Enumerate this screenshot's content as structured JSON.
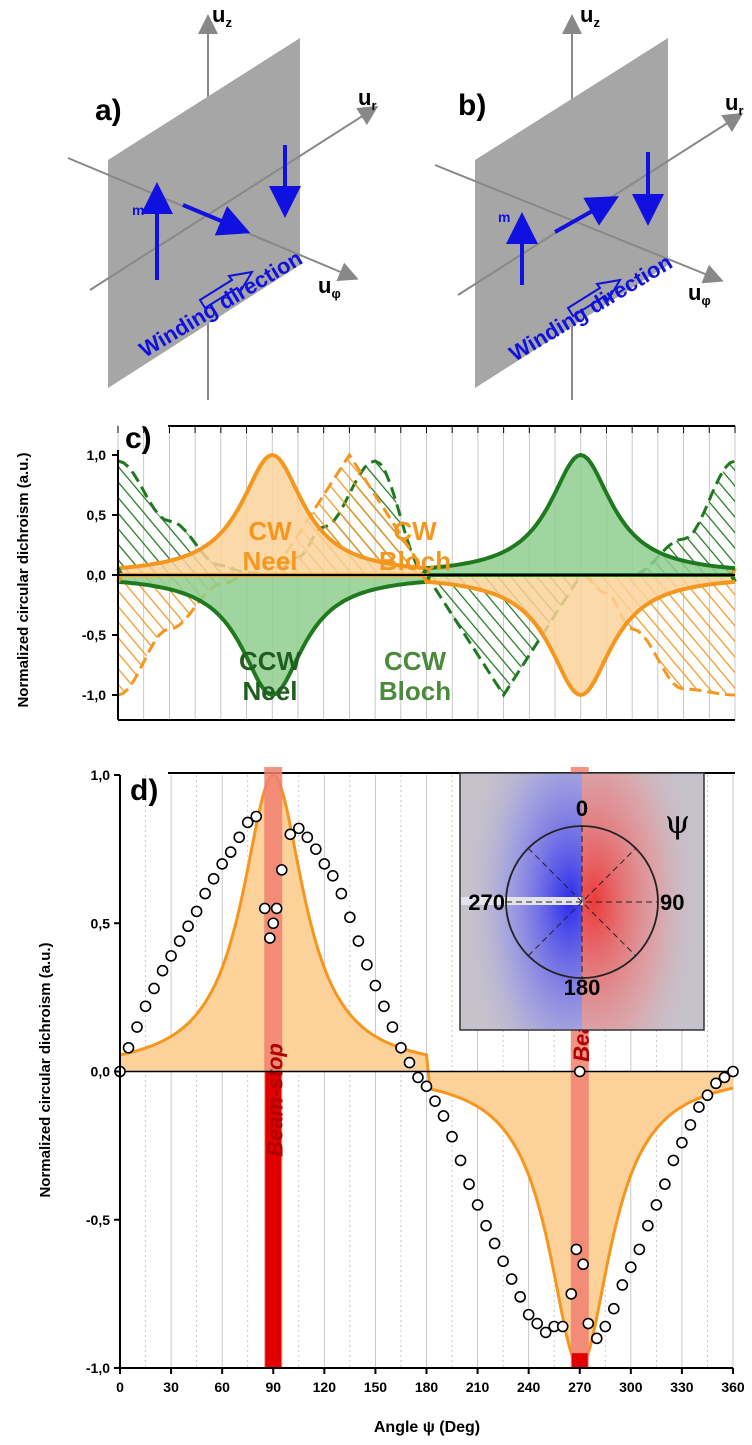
{
  "diagrams": {
    "a": {
      "label": "a)",
      "axes": {
        "z": "u",
        "z_sub": "z",
        "r": "u",
        "r_sub": "r",
        "phi": "u",
        "phi_sub": "φ"
      },
      "moment_label": "m",
      "winding_label": "Winding direction"
    },
    "b": {
      "label": "b)",
      "axes": {
        "z": "u",
        "z_sub": "z",
        "r": "u",
        "r_sub": "r",
        "phi": "u",
        "phi_sub": "φ"
      },
      "moment_label": "m",
      "winding_label": "Winding direction"
    }
  },
  "colors": {
    "orange": "#f5961e",
    "orange_fill": "#fcd29a",
    "green": "#1f7a1f",
    "green_fill": "#8fce8f",
    "plane": "#a6a6a6",
    "arrow": "#1010e0",
    "beam_stop": "#e00000",
    "beam_stop_light": "#f08070"
  },
  "chart_data": [
    {
      "panel": "c)",
      "type": "area",
      "ylabel": "Normalized circular dichroism (a.u.)",
      "xlim": [
        0,
        360
      ],
      "ylim": [
        -1.0,
        1.0
      ],
      "yticks": [
        "1,0",
        "0,5",
        "0,0",
        "-0,5",
        "-1,0"
      ],
      "x": [
        0,
        30,
        60,
        75,
        90,
        105,
        120,
        150,
        180,
        210,
        240,
        255,
        270,
        285,
        300,
        330,
        360
      ],
      "series": [
        {
          "values": [
            0,
            0.08,
            0.35,
            0.7,
            1.0,
            0.7,
            0.35,
            0.08,
            0,
            0,
            0,
            0,
            0,
            0,
            0,
            0,
            0
          ]
        },
        {
          "values": [
            0,
            0,
            0,
            0,
            0,
            0,
            0,
            0,
            0,
            0.08,
            0.35,
            0.7,
            1.0,
            0.7,
            0.35,
            0.08,
            0
          ]
        },
        {
          "values": [
            0,
            -0.08,
            -0.35,
            -0.7,
            -1.0,
            -0.7,
            -0.35,
            -0.08,
            0,
            0,
            0,
            0,
            0,
            0,
            0,
            0,
            0
          ]
        },
        {
          "values": [
            0,
            0,
            0,
            0,
            0,
            0,
            0,
            0,
            0,
            -0.08,
            -0.35,
            -0.7,
            -1.0,
            -0.7,
            -0.35,
            -0.08,
            0
          ]
        },
        {
          "values": [
            0.95,
            0.45,
            0.08,
            0.02,
            0,
            0.15,
            0.4,
            0.95,
            0,
            0,
            0,
            0,
            0,
            0,
            0,
            0.3,
            0.95
          ]
        },
        {
          "values": [
            -1.0,
            -0.45,
            -0.08,
            0,
            0,
            0,
            0,
            0,
            0,
            0,
            0,
            0,
            0,
            -0.15,
            -0.45,
            -0.95,
            -1.0
          ]
        }
      ],
      "annotations": [
        {
          "text": "CW",
          "line2": "Neel",
          "color": "#f5961e"
        },
        {
          "text": "CW",
          "line2": "Bloch",
          "color": "#f5961e"
        },
        {
          "text": "CCW",
          "line2": "Neel",
          "color": "#1f5e1f"
        },
        {
          "text": "CCW",
          "line2": "Bloch",
          "color": "#4a8a3a"
        }
      ]
    },
    {
      "panel": "d)",
      "type": "scatter",
      "xlabel": "Angle ψ (Deg)",
      "ylabel": "Normalized circular dichroism (a.u.)",
      "xlim": [
        0,
        360
      ],
      "ylim": [
        -1.0,
        1.0
      ],
      "xticks": [
        0,
        30,
        60,
        90,
        120,
        150,
        180,
        210,
        240,
        270,
        300,
        330,
        360
      ],
      "yticks": [
        "1,0",
        "0,5",
        "0,0",
        "-0,5",
        "-1,0"
      ],
      "model_curve": {
        "x": [
          0,
          30,
          60,
          75,
          90,
          105,
          120,
          150,
          180,
          210,
          240,
          255,
          270,
          285,
          300,
          330,
          360
        ],
        "y": [
          0,
          0.08,
          0.35,
          0.7,
          1.0,
          0.7,
          0.35,
          0.08,
          0,
          -0.08,
          -0.35,
          -0.7,
          -1.0,
          -0.7,
          -0.35,
          -0.08,
          0
        ]
      },
      "data_points": {
        "x": [
          0,
          5,
          10,
          15,
          20,
          25,
          30,
          35,
          40,
          45,
          50,
          55,
          60,
          65,
          70,
          75,
          80,
          85,
          88,
          90,
          92,
          95,
          100,
          105,
          110,
          115,
          120,
          125,
          130,
          135,
          140,
          145,
          150,
          155,
          160,
          165,
          170,
          175,
          180,
          185,
          190,
          195,
          200,
          205,
          210,
          215,
          220,
          225,
          230,
          235,
          240,
          245,
          250,
          255,
          260,
          265,
          268,
          270,
          272,
          275,
          280,
          285,
          290,
          295,
          300,
          305,
          310,
          315,
          320,
          325,
          330,
          335,
          340,
          345,
          350,
          355,
          360
        ],
        "y": [
          0.0,
          0.08,
          0.15,
          0.22,
          0.28,
          0.34,
          0.39,
          0.44,
          0.49,
          0.54,
          0.6,
          0.65,
          0.7,
          0.74,
          0.79,
          0.84,
          0.86,
          0.55,
          0.45,
          0.5,
          0.55,
          0.68,
          0.8,
          0.82,
          0.79,
          0.75,
          0.7,
          0.66,
          0.6,
          0.52,
          0.44,
          0.36,
          0.29,
          0.22,
          0.15,
          0.08,
          0.03,
          -0.02,
          -0.05,
          -0.1,
          -0.15,
          -0.22,
          -0.3,
          -0.38,
          -0.45,
          -0.52,
          -0.58,
          -0.64,
          -0.7,
          -0.76,
          -0.82,
          -0.85,
          -0.88,
          -0.86,
          -0.86,
          -0.75,
          -0.6,
          0.0,
          -0.65,
          -0.85,
          -0.9,
          -0.86,
          -0.8,
          -0.72,
          -0.66,
          -0.6,
          -0.52,
          -0.45,
          -0.38,
          -0.3,
          -0.24,
          -0.18,
          -0.12,
          -0.08,
          -0.04,
          -0.02,
          0.0
        ]
      },
      "annotations": [
        {
          "text": "Beam-stop"
        },
        {
          "text": "Beam-stop"
        }
      ],
      "inset": {
        "labels": [
          "0",
          "90",
          "180",
          "270"
        ],
        "symbol": "ψ"
      }
    }
  ]
}
